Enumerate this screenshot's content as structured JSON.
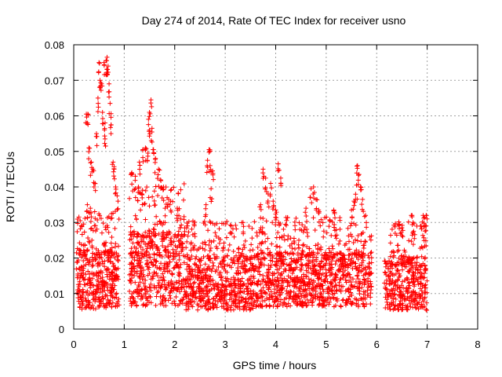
{
  "chart_data": {
    "type": "scatter",
    "title": "Day 274 of 2014, Rate Of TEC Index for receiver usno",
    "xlabel": "GPS time / hours",
    "ylabel": "ROTI / TECUs",
    "xlim": [
      0,
      8
    ],
    "ylim": [
      0,
      0.08
    ],
    "xticks": [
      0,
      1,
      2,
      3,
      4,
      5,
      6,
      7,
      8
    ],
    "xtick_labels": [
      "0",
      "1",
      "2",
      "3",
      "4",
      "5",
      "6",
      "7",
      "8"
    ],
    "yticks": [
      0,
      0.01,
      0.02,
      0.03,
      0.04,
      0.05,
      0.06,
      0.07,
      0.08
    ],
    "ytick_labels": [
      "0",
      "0.01",
      "0.02",
      "0.03",
      "0.04",
      "0.05",
      "0.06",
      "0.07",
      "0.08"
    ],
    "grid": true,
    "marker": "+",
    "color": "#ff0000",
    "segments": [
      {
        "x_start": 0.05,
        "x_end": 0.9,
        "y_base": 0.014,
        "y_spread": 0.012,
        "n": 420
      },
      {
        "x_start": 1.1,
        "x_end": 2.2,
        "y_base": 0.017,
        "y_spread": 0.015,
        "n": 520
      },
      {
        "x_start": 2.2,
        "x_end": 3.6,
        "y_base": 0.013,
        "y_spread": 0.011,
        "n": 620
      },
      {
        "x_start": 3.6,
        "x_end": 5.9,
        "y_base": 0.014,
        "y_spread": 0.011,
        "n": 1000
      },
      {
        "x_start": 6.15,
        "x_end": 7.0,
        "y_base": 0.013,
        "y_spread": 0.011,
        "n": 380
      }
    ],
    "highlights": [
      {
        "x": 0.25,
        "y": 0.0605
      },
      {
        "x": 0.28,
        "y": 0.0605
      },
      {
        "x": 0.3,
        "y": 0.051
      },
      {
        "x": 0.35,
        "y": 0.047
      },
      {
        "x": 0.38,
        "y": 0.045
      },
      {
        "x": 0.42,
        "y": 0.041
      },
      {
        "x": 0.45,
        "y": 0.055
      },
      {
        "x": 0.48,
        "y": 0.065
      },
      {
        "x": 0.5,
        "y": 0.075
      },
      {
        "x": 0.52,
        "y": 0.07
      },
      {
        "x": 0.55,
        "y": 0.069
      },
      {
        "x": 0.57,
        "y": 0.061
      },
      {
        "x": 0.6,
        "y": 0.075
      },
      {
        "x": 0.62,
        "y": 0.058
      },
      {
        "x": 0.64,
        "y": 0.0755
      },
      {
        "x": 0.66,
        "y": 0.0765
      },
      {
        "x": 0.68,
        "y": 0.074
      },
      {
        "x": 0.7,
        "y": 0.069
      },
      {
        "x": 0.72,
        "y": 0.0635
      },
      {
        "x": 0.74,
        "y": 0.0575
      },
      {
        "x": 0.78,
        "y": 0.047
      },
      {
        "x": 0.8,
        "y": 0.045
      },
      {
        "x": 0.83,
        "y": 0.04
      },
      {
        "x": 0.86,
        "y": 0.0375
      },
      {
        "x": 0.62,
        "y": 0.0535
      },
      {
        "x": 0.33,
        "y": 0.034
      },
      {
        "x": 0.27,
        "y": 0.035
      },
      {
        "x": 1.15,
        "y": 0.044
      },
      {
        "x": 1.22,
        "y": 0.043
      },
      {
        "x": 1.3,
        "y": 0.047
      },
      {
        "x": 1.37,
        "y": 0.0505
      },
      {
        "x": 1.42,
        "y": 0.051
      },
      {
        "x": 1.47,
        "y": 0.0495
      },
      {
        "x": 1.5,
        "y": 0.056
      },
      {
        "x": 1.53,
        "y": 0.0645
      },
      {
        "x": 1.55,
        "y": 0.0565
      },
      {
        "x": 1.58,
        "y": 0.0505
      },
      {
        "x": 1.62,
        "y": 0.048
      },
      {
        "x": 1.68,
        "y": 0.045
      },
      {
        "x": 1.72,
        "y": 0.042
      },
      {
        "x": 1.78,
        "y": 0.04
      },
      {
        "x": 1.85,
        "y": 0.037
      },
      {
        "x": 1.92,
        "y": 0.036
      },
      {
        "x": 2.05,
        "y": 0.034
      },
      {
        "x": 2.12,
        "y": 0.031
      },
      {
        "x": 1.28,
        "y": 0.04
      },
      {
        "x": 1.35,
        "y": 0.038
      },
      {
        "x": 1.5,
        "y": 0.061
      },
      {
        "x": 2.65,
        "y": 0.0475
      },
      {
        "x": 2.68,
        "y": 0.0505
      },
      {
        "x": 2.7,
        "y": 0.046
      },
      {
        "x": 2.72,
        "y": 0.0395
      },
      {
        "x": 2.75,
        "y": 0.0445
      },
      {
        "x": 2.62,
        "y": 0.035
      },
      {
        "x": 3.75,
        "y": 0.045
      },
      {
        "x": 3.8,
        "y": 0.0425
      },
      {
        "x": 3.85,
        "y": 0.038
      },
      {
        "x": 3.9,
        "y": 0.041
      },
      {
        "x": 3.95,
        "y": 0.036
      },
      {
        "x": 4.05,
        "y": 0.0465
      },
      {
        "x": 4.1,
        "y": 0.0425
      },
      {
        "x": 3.7,
        "y": 0.035
      },
      {
        "x": 4.0,
        "y": 0.0335
      },
      {
        "x": 4.7,
        "y": 0.0395
      },
      {
        "x": 4.75,
        "y": 0.04
      },
      {
        "x": 4.8,
        "y": 0.0365
      },
      {
        "x": 4.85,
        "y": 0.0335
      },
      {
        "x": 4.6,
        "y": 0.034
      },
      {
        "x": 5.15,
        "y": 0.0335
      },
      {
        "x": 5.55,
        "y": 0.036
      },
      {
        "x": 5.6,
        "y": 0.0405
      },
      {
        "x": 5.62,
        "y": 0.046
      },
      {
        "x": 5.65,
        "y": 0.0435
      },
      {
        "x": 5.68,
        "y": 0.04
      },
      {
        "x": 5.72,
        "y": 0.0365
      },
      {
        "x": 5.78,
        "y": 0.032
      },
      {
        "x": 5.5,
        "y": 0.0335
      },
      {
        "x": 6.45,
        "y": 0.0295
      },
      {
        "x": 6.5,
        "y": 0.0285
      },
      {
        "x": 6.7,
        "y": 0.032
      },
      {
        "x": 6.72,
        "y": 0.03
      },
      {
        "x": 6.92,
        "y": 0.032
      },
      {
        "x": 6.95,
        "y": 0.0315
      },
      {
        "x": 6.98,
        "y": 0.032
      },
      {
        "x": 6.88,
        "y": 0.029
      }
    ]
  }
}
